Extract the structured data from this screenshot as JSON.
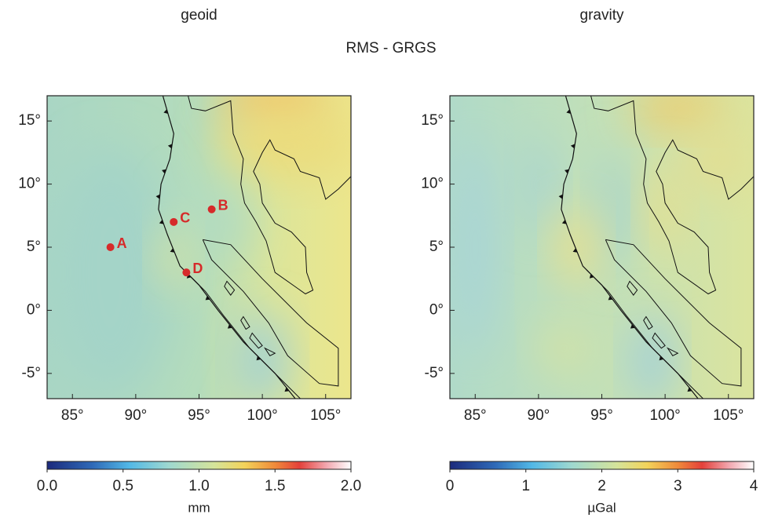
{
  "header": {
    "title": "RMS - GRGS"
  },
  "panels": [
    {
      "title": "geoid",
      "xlim": [
        83,
        107
      ],
      "ylim": [
        -7,
        17
      ],
      "xticks": [
        {
          "value": 85,
          "label": "85°"
        },
        {
          "value": 90,
          "label": "90°"
        },
        {
          "value": 95,
          "label": "95°"
        },
        {
          "value": 100,
          "label": "100°"
        },
        {
          "value": 105,
          "label": "105°"
        }
      ],
      "yticks": [
        {
          "value": 15,
          "label": "15°"
        },
        {
          "value": 10,
          "label": "10°"
        },
        {
          "value": 5,
          "label": "5°"
        },
        {
          "value": 0,
          "label": "0°"
        },
        {
          "value": -5,
          "label": "-5°"
        }
      ],
      "colorbar": {
        "lim": [
          0,
          2
        ],
        "ticks": [
          {
            "value": 0,
            "label": "0.0"
          },
          {
            "value": 0.5,
            "label": "0.5"
          },
          {
            "value": 1,
            "label": "1.0"
          },
          {
            "value": 1.5,
            "label": "1.5"
          },
          {
            "value": 2,
            "label": "2.0"
          }
        ],
        "label": "mm"
      },
      "points": [
        {
          "label": "A",
          "lon": 88,
          "lat": 5
        },
        {
          "label": "B",
          "lon": 96,
          "lat": 8
        },
        {
          "label": "C",
          "lon": 93,
          "lat": 7
        },
        {
          "label": "D",
          "lon": 94,
          "lat": 3
        }
      ]
    },
    {
      "title": "gravity",
      "xlim": [
        83,
        107
      ],
      "ylim": [
        -7,
        17
      ],
      "xticks": [
        {
          "value": 85,
          "label": "85°"
        },
        {
          "value": 90,
          "label": "90°"
        },
        {
          "value": 95,
          "label": "95°"
        },
        {
          "value": 100,
          "label": "100°"
        },
        {
          "value": 105,
          "label": "105°"
        }
      ],
      "yticks": [
        {
          "value": 15,
          "label": "15°"
        },
        {
          "value": 10,
          "label": "10°"
        },
        {
          "value": 5,
          "label": "5°"
        },
        {
          "value": 0,
          "label": "0°"
        },
        {
          "value": -5,
          "label": "-5°"
        }
      ],
      "colorbar": {
        "lim": [
          0,
          4
        ],
        "ticks": [
          0,
          1,
          2,
          3,
          4
        ],
        "label": "µGal"
      }
    }
  ]
}
